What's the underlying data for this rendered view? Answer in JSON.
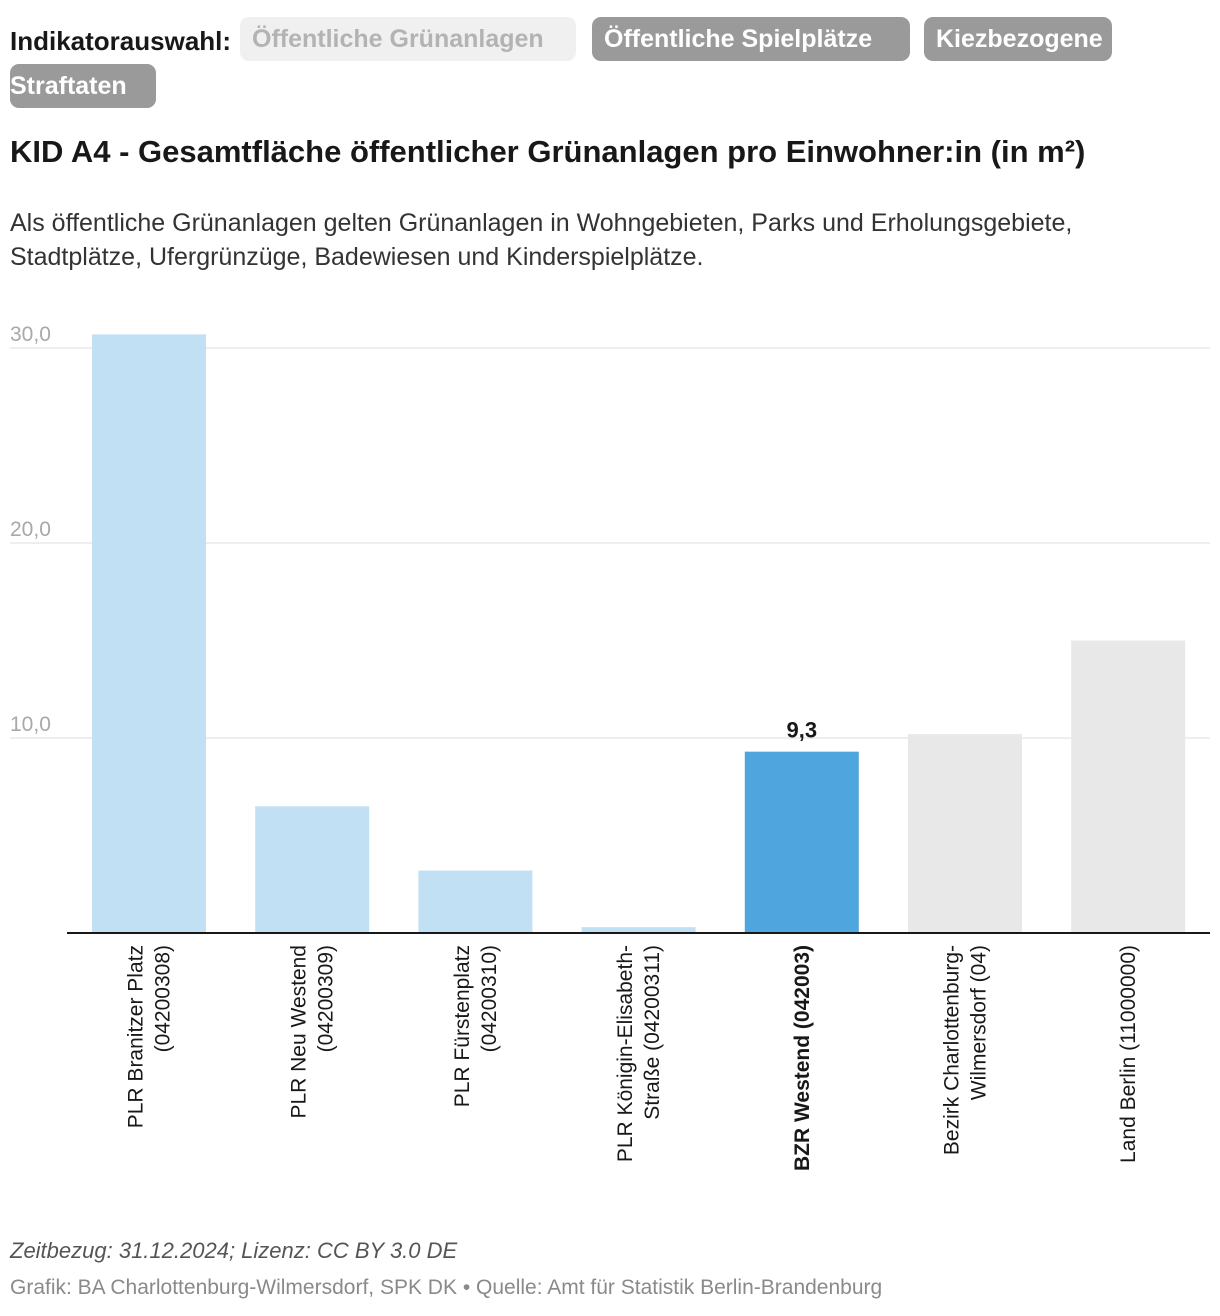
{
  "selector": {
    "label": "Indikatorauswahl:",
    "options": [
      {
        "label": "Öffentliche Grünanlagen",
        "active": true
      },
      {
        "label": "Öffentliche Spielplätze",
        "active": false
      },
      {
        "label": "Kiezbezogene",
        "active": false
      },
      {
        "label": "Straftaten",
        "active": false
      }
    ]
  },
  "header": {
    "title": "KID A4 - Gesamtfläche öffentlicher Grünanlagen pro Einwohner:in (in m²)",
    "description": "Als öffentliche Grünanlagen gelten Grünanlagen in Wohngebieten, Parks und Erholungsgebiete, Stadtplätze, Ufergrünzüge, Badewiesen und Kinderspielplätze."
  },
  "chart_data": {
    "type": "bar",
    "title": "KID A4 - Gesamtfläche öffentlicher Grünanlagen pro Einwohner:in (in m²)",
    "xlabel": "",
    "ylabel": "",
    "ylim": [
      0,
      30
    ],
    "yticks": [
      "10,0",
      "20,0",
      "30,0"
    ],
    "grid": true,
    "categories": [
      [
        "PLR Branitzer Platz",
        "(04200308)"
      ],
      [
        "PLR Neu Westend",
        "(04200309)"
      ],
      [
        "PLR Fürstenplatz",
        "(04200310)"
      ],
      [
        "PLR Königin-Elisabeth-",
        "Straße (04200311)"
      ],
      [
        "BZR Westend (042003)"
      ],
      [
        "Bezirk Charlottenburg-",
        "Wilmersdorf (04)"
      ],
      [
        "Land Berlin (11000000)"
      ]
    ],
    "values": [
      30.7,
      6.5,
      3.2,
      0.3,
      9.3,
      10.2,
      15.0
    ],
    "colors": [
      "#c2e0f4",
      "#c2e0f4",
      "#c2e0f4",
      "#c2e0f4",
      "#4fa5de",
      "#e8e8e8",
      "#e8e8e8"
    ],
    "highlight_index": 4,
    "highlight_label": "9,3"
  },
  "footer": {
    "note": "Zeitbezug: 31.12.2024; Lizenz: CC BY 3.0 DE",
    "source": "Grafik: BA Charlottenburg-Wilmersdorf, SPK DK • Quelle: Amt für Statistik Berlin-Brandenburg"
  }
}
